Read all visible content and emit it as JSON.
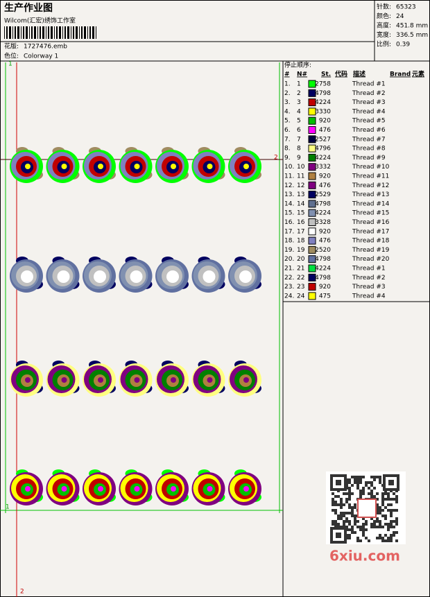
{
  "header": {
    "title": "生产作业图",
    "studio": "Wilcom(汇宏)绣饰工作室",
    "design_label": "花版:",
    "design": "1727476.emb",
    "colorway_label": "色位:",
    "colorway": "Colorway 1"
  },
  "info": [
    {
      "label": "针数:",
      "value": "65323"
    },
    {
      "label": "颜色:",
      "value": "24"
    },
    {
      "label": "高度:",
      "value": "451.8 mm"
    },
    {
      "label": "宽度:",
      "value": "336.5 mm"
    },
    {
      "label": "比例:",
      "value": "0.39"
    }
  ],
  "canvas": {
    "marks": [
      "1",
      "2",
      "1",
      "2"
    ]
  },
  "sequence": {
    "title": "停止顺序:",
    "columns": [
      "#",
      "N#",
      "St.",
      "代码",
      "描述",
      "Brand",
      "元素"
    ],
    "rows": [
      {
        "no": "1.",
        "n": "1",
        "color": "#00ff00",
        "code": "2758",
        "desc": "Thread #1"
      },
      {
        "no": "2.",
        "n": "2",
        "color": "#000060",
        "code": "4798",
        "desc": "Thread #2"
      },
      {
        "no": "3.",
        "n": "3",
        "color": "#c00000",
        "code": "4224",
        "desc": "Thread #3"
      },
      {
        "no": "4.",
        "n": "4",
        "color": "#ffff00",
        "code": "3330",
        "desc": "Thread #4"
      },
      {
        "no": "5.",
        "n": "5",
        "color": "#00c000",
        "code": "920",
        "desc": "Thread #5"
      },
      {
        "no": "6.",
        "n": "6",
        "color": "#ff00ff",
        "code": "476",
        "desc": "Thread #6"
      },
      {
        "no": "7.",
        "n": "7",
        "color": "#000040",
        "code": "2527",
        "desc": "Thread #7"
      },
      {
        "no": "8.",
        "n": "8",
        "color": "#ffff80",
        "code": "4796",
        "desc": "Thread #8"
      },
      {
        "no": "9.",
        "n": "9",
        "color": "#008000",
        "code": "4224",
        "desc": "Thread #9"
      },
      {
        "no": "10.",
        "n": "10",
        "color": "#800080",
        "code": "3332",
        "desc": "Thread #10"
      },
      {
        "no": "11.",
        "n": "11",
        "color": "#b08040",
        "code": "920",
        "desc": "Thread #11"
      },
      {
        "no": "12.",
        "n": "12",
        "color": "#800080",
        "code": "476",
        "desc": "Thread #12"
      },
      {
        "no": "13.",
        "n": "13",
        "color": "#000060",
        "code": "2529",
        "desc": "Thread #13"
      },
      {
        "no": "14.",
        "n": "14",
        "color": "#607090",
        "code": "4798",
        "desc": "Thread #14"
      },
      {
        "no": "15.",
        "n": "15",
        "color": "#8090b0",
        "code": "4224",
        "desc": "Thread #15"
      },
      {
        "no": "16.",
        "n": "16",
        "color": "#c0c0c0",
        "code": "3328",
        "desc": "Thread #16"
      },
      {
        "no": "17.",
        "n": "17",
        "color": "#ffffff",
        "code": "920",
        "desc": "Thread #17"
      },
      {
        "no": "18.",
        "n": "18",
        "color": "#8080c0",
        "code": "476",
        "desc": "Thread #18"
      },
      {
        "no": "19.",
        "n": "19",
        "color": "#a08c60",
        "code": "2520",
        "desc": "Thread #19"
      },
      {
        "no": "20.",
        "n": "20",
        "color": "#6070a0",
        "code": "4798",
        "desc": "Thread #20"
      },
      {
        "no": "21.",
        "n": "21",
        "color": "#00e040",
        "code": "4224",
        "desc": "Thread #1"
      },
      {
        "no": "22.",
        "n": "22",
        "color": "#000060",
        "code": "4798",
        "desc": "Thread #2"
      },
      {
        "no": "23.",
        "n": "23",
        "color": "#c00000",
        "code": "920",
        "desc": "Thread #3"
      },
      {
        "no": "24.",
        "n": "24",
        "color": "#ffff00",
        "code": "475",
        "desc": "Thread #4"
      }
    ]
  },
  "watermark": "6xiu.com"
}
